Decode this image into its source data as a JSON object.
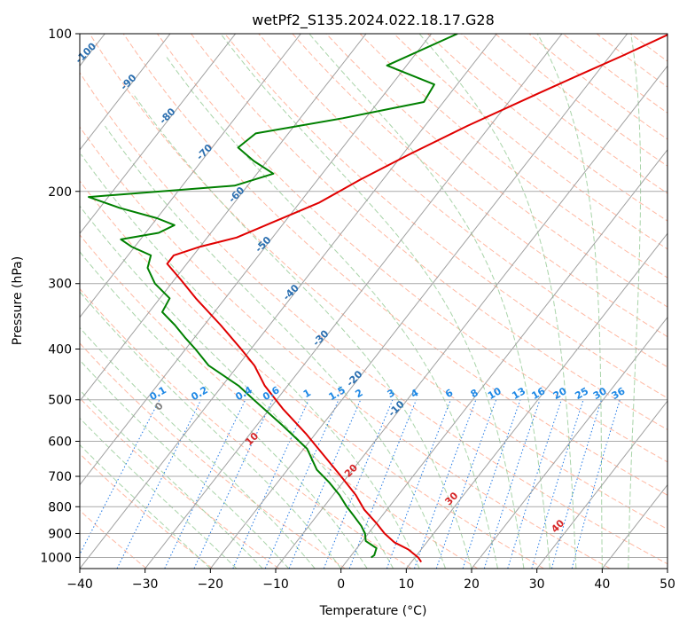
{
  "chart_data": {
    "type": "line",
    "subtype": "skew-t log-p diagram",
    "title": "wetPf2_S135.2024.022.18.17.G28",
    "xlabel": "Temperature (°C)",
    "ylabel": "Pressure (hPa)",
    "xlim": [
      -40,
      50
    ],
    "ylim": [
      1050,
      100
    ],
    "y_scale": "log",
    "grid": true,
    "x_ticks": [
      -40,
      -30,
      -20,
      -10,
      0,
      10,
      20,
      30,
      40,
      50
    ],
    "y_ticks": [
      100,
      200,
      300,
      400,
      500,
      600,
      700,
      800,
      900,
      1000
    ],
    "colors": {
      "temperature": "#e00000",
      "dewpoint": "#008000",
      "isotherm": "#a0a0a0",
      "dry_adiabat": "#ff9a7a",
      "moist_adiabat": "#93c993",
      "mixing_ratio": "#1f77e4",
      "isobar_grid": "#a9a9a9",
      "label_isotherm": "#2b6fb0",
      "label_mixing_ratio": "#1e88e5",
      "label_dry_adiabat": "#d62728"
    },
    "isotherm_labels": [
      "-100",
      "-90",
      "-80",
      "-70",
      "-60",
      "-50",
      "-40",
      "-30",
      "-20",
      "-10"
    ],
    "mixing_ratio_labels": [
      "0.1",
      "0.2",
      "0.4",
      "0.6",
      "1",
      "1.5",
      "2",
      "3",
      "4",
      "6",
      "8",
      "10",
      "13",
      "16",
      "20",
      "25",
      "30",
      "36"
    ],
    "dry_adiabat_labels": [
      "0",
      "10",
      "20",
      "30",
      "40"
    ],
    "series": [
      {
        "key": "temperature",
        "points": [
          [
            100,
            -13.5
          ],
          [
            110,
            -18.0
          ],
          [
            120,
            -22.5
          ],
          [
            130,
            -26.5
          ],
          [
            150,
            -33.5
          ],
          [
            170,
            -39.0
          ],
          [
            190,
            -43.5
          ],
          [
            210,
            -47.0
          ],
          [
            230,
            -52.0
          ],
          [
            245,
            -55.5
          ],
          [
            255,
            -60.0
          ],
          [
            265,
            -63.0
          ],
          [
            275,
            -63.0
          ],
          [
            295,
            -59.0
          ],
          [
            320,
            -54.5
          ],
          [
            360,
            -47.5
          ],
          [
            400,
            -41.5
          ],
          [
            430,
            -37.5
          ],
          [
            470,
            -33.5
          ],
          [
            520,
            -28.0
          ],
          [
            580,
            -21.5
          ],
          [
            640,
            -16.0
          ],
          [
            700,
            -11.0
          ],
          [
            760,
            -6.5
          ],
          [
            810,
            -3.5
          ],
          [
            860,
            0.0
          ],
          [
            900,
            2.5
          ],
          [
            935,
            5.0
          ],
          [
            965,
            8.0
          ],
          [
            1000,
            10.5
          ],
          [
            1020,
            11.5
          ]
        ]
      },
      {
        "key": "dewpoint",
        "points": [
          [
            100,
            -46.0
          ],
          [
            115,
            -53.0
          ],
          [
            125,
            -43.5
          ],
          [
            135,
            -43.0
          ],
          [
            145,
            -53.5
          ],
          [
            155,
            -65.0
          ],
          [
            165,
            -66.0
          ],
          [
            175,
            -62.0
          ],
          [
            185,
            -57.5
          ],
          [
            195,
            -62.0
          ],
          [
            205,
            -83.0
          ],
          [
            215,
            -77.0
          ],
          [
            225,
            -70.0
          ],
          [
            232,
            -66.5
          ],
          [
            240,
            -68.0
          ],
          [
            247,
            -73.0
          ],
          [
            255,
            -70.5
          ],
          [
            265,
            -66.5
          ],
          [
            280,
            -65.5
          ],
          [
            300,
            -62.5
          ],
          [
            320,
            -58.5
          ],
          [
            340,
            -58.0
          ],
          [
            360,
            -54.5
          ],
          [
            380,
            -51.5
          ],
          [
            400,
            -48.5
          ],
          [
            430,
            -44.5
          ],
          [
            470,
            -37.5
          ],
          [
            500,
            -33.5
          ],
          [
            560,
            -26.0
          ],
          [
            620,
            -19.5
          ],
          [
            680,
            -15.5
          ],
          [
            720,
            -12.0
          ],
          [
            760,
            -9.0
          ],
          [
            800,
            -6.5
          ],
          [
            830,
            -4.5
          ],
          [
            870,
            -2.0
          ],
          [
            900,
            -0.5
          ],
          [
            930,
            0.5
          ],
          [
            960,
            3.0
          ],
          [
            990,
            3.5
          ],
          [
            1000,
            3.3
          ]
        ]
      }
    ]
  }
}
